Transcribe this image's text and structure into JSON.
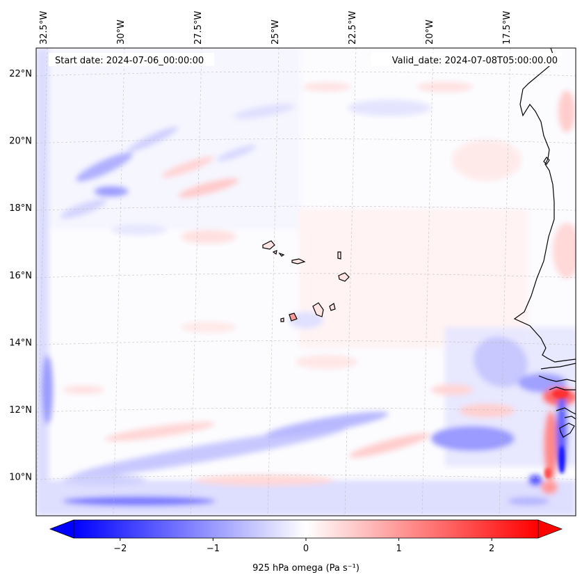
{
  "map": {
    "start_date_label": "Start date: 2024-07-06_00:00:00",
    "valid_date_label": "Valid_date: 2024-07-08T05:00:00.00",
    "lon_ticks": [
      {
        "label": "32.5°W",
        "lon": -32.5
      },
      {
        "label": "30°W",
        "lon": -30
      },
      {
        "label": "27.5°W",
        "lon": -27.5
      },
      {
        "label": "25°W",
        "lon": -25
      },
      {
        "label": "22.5°W",
        "lon": -22.5
      },
      {
        "label": "20°W",
        "lon": -20
      },
      {
        "label": "17.5°W",
        "lon": -17.5
      }
    ],
    "lat_ticks": [
      {
        "label": "22°N",
        "lat": 22
      },
      {
        "label": "20°N",
        "lat": 20
      },
      {
        "label": "18°N",
        "lat": 18
      },
      {
        "label": "16°N",
        "lat": 16
      },
      {
        "label": "14°N",
        "lat": 14
      },
      {
        "label": "12°N",
        "lat": 12
      },
      {
        "label": "10°N",
        "lat": 10
      }
    ],
    "colormap": "bwr",
    "colors": {
      "negative": "#0000ff",
      "zero": "#ffffff",
      "positive": "#ff0000",
      "coastline": "#000000",
      "gridline": "#bbbbbb"
    }
  },
  "colorbar": {
    "label": "925 hPa omega (Pa s⁻¹)",
    "ticks": [
      {
        "label": "−2",
        "value": -2
      },
      {
        "label": "−1",
        "value": -1
      },
      {
        "label": "0",
        "value": 0
      },
      {
        "label": "1",
        "value": 1
      },
      {
        "label": "2",
        "value": 2
      }
    ],
    "range": [
      -2.5,
      2.5
    ],
    "extend": "both"
  }
}
